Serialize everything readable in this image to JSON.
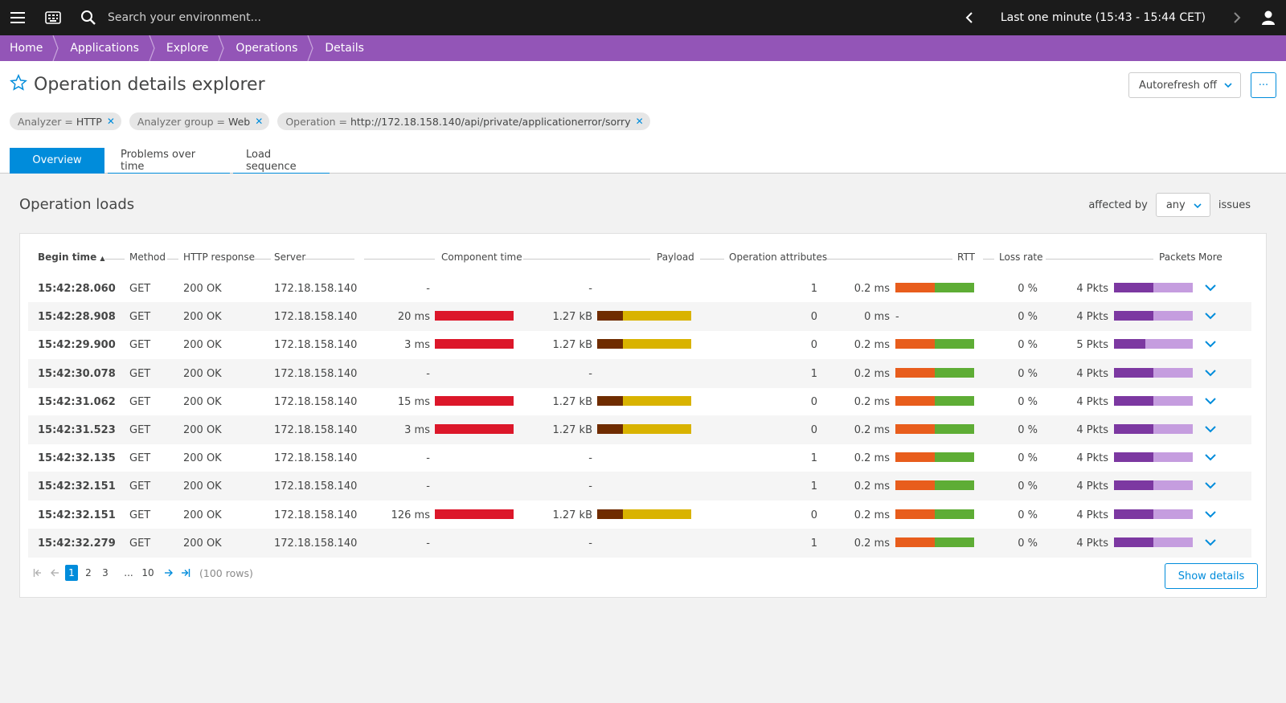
{
  "topbar": {
    "search_placeholder": "Search your environment...",
    "timeframe": "Last one minute (15:43 - 15:44 CET)"
  },
  "breadcrumb": [
    "Home",
    "Applications",
    "Explore",
    "Operations",
    "Details"
  ],
  "page": {
    "title": "Operation details explorer",
    "autorefresh": "Autorefresh off",
    "more": "···"
  },
  "filters": [
    {
      "key": "Analyzer",
      "op": " = ",
      "value": "HTTP"
    },
    {
      "key": "Analyzer group",
      "op": " = ",
      "value": "Web"
    },
    {
      "key": "Operation",
      "op": " = ",
      "value": "http://172.18.158.140/api/private/applicationerror/sorry"
    }
  ],
  "tabs": [
    "Overview",
    "Problems over time",
    "Load sequence"
  ],
  "section": {
    "title": "Operation loads",
    "affected_by": "affected by",
    "select_value": "any",
    "issues": "issues"
  },
  "table": {
    "columns": {
      "begin_time": "Begin time",
      "method": "Method",
      "http_response": "HTTP response",
      "server": "Server",
      "component_time": "Component time",
      "payload": "Payload",
      "operation_attributes": "Operation attributes",
      "rtt": "RTT",
      "loss_rate": "Loss rate",
      "packets": "Packets",
      "more": "More"
    },
    "rows": [
      {
        "time": "15:42:28.060",
        "method": "GET",
        "http": "200 OK",
        "server": "172.18.158.140",
        "comp": "-",
        "comp_bar": 0,
        "payload": "-",
        "payload_bar": 0,
        "attrs": "1",
        "rtt": "0.2 ms",
        "rtt_bar": 1,
        "loss": "0 %",
        "packets": "4 Pkts",
        "pkts_split": 0.5
      },
      {
        "time": "15:42:28.908",
        "method": "GET",
        "http": "200 OK",
        "server": "172.18.158.140",
        "comp": "20 ms",
        "comp_bar": 1,
        "payload": "1.27 kB",
        "payload_bar": 1,
        "attrs": "0",
        "rtt": "0 ms",
        "rtt_bar": 0,
        "loss": "0 %",
        "packets": "4 Pkts",
        "pkts_split": 0.5
      },
      {
        "time": "15:42:29.900",
        "method": "GET",
        "http": "200 OK",
        "server": "172.18.158.140",
        "comp": "3 ms",
        "comp_bar": 1,
        "payload": "1.27 kB",
        "payload_bar": 1,
        "attrs": "0",
        "rtt": "0.2 ms",
        "rtt_bar": 1,
        "loss": "0 %",
        "packets": "5 Pkts",
        "pkts_split": 0.4
      },
      {
        "time": "15:42:30.078",
        "method": "GET",
        "http": "200 OK",
        "server": "172.18.158.140",
        "comp": "-",
        "comp_bar": 0,
        "payload": "-",
        "payload_bar": 0,
        "attrs": "1",
        "rtt": "0.2 ms",
        "rtt_bar": 1,
        "loss": "0 %",
        "packets": "4 Pkts",
        "pkts_split": 0.5
      },
      {
        "time": "15:42:31.062",
        "method": "GET",
        "http": "200 OK",
        "server": "172.18.158.140",
        "comp": "15 ms",
        "comp_bar": 1,
        "payload": "1.27 kB",
        "payload_bar": 1,
        "attrs": "0",
        "rtt": "0.2 ms",
        "rtt_bar": 1,
        "loss": "0 %",
        "packets": "4 Pkts",
        "pkts_split": 0.5
      },
      {
        "time": "15:42:31.523",
        "method": "GET",
        "http": "200 OK",
        "server": "172.18.158.140",
        "comp": "3 ms",
        "comp_bar": 1,
        "payload": "1.27 kB",
        "payload_bar": 1,
        "attrs": "0",
        "rtt": "0.2 ms",
        "rtt_bar": 1,
        "loss": "0 %",
        "packets": "4 Pkts",
        "pkts_split": 0.5
      },
      {
        "time": "15:42:32.135",
        "method": "GET",
        "http": "200 OK",
        "server": "172.18.158.140",
        "comp": "-",
        "comp_bar": 0,
        "payload": "-",
        "payload_bar": 0,
        "attrs": "1",
        "rtt": "0.2 ms",
        "rtt_bar": 1,
        "loss": "0 %",
        "packets": "4 Pkts",
        "pkts_split": 0.5
      },
      {
        "time": "15:42:32.151",
        "method": "GET",
        "http": "200 OK",
        "server": "172.18.158.140",
        "comp": "-",
        "comp_bar": 0,
        "payload": "-",
        "payload_bar": 0,
        "attrs": "1",
        "rtt": "0.2 ms",
        "rtt_bar": 1,
        "loss": "0 %",
        "packets": "4 Pkts",
        "pkts_split": 0.5
      },
      {
        "time": "15:42:32.151",
        "method": "GET",
        "http": "200 OK",
        "server": "172.18.158.140",
        "comp": "126 ms",
        "comp_bar": 1,
        "payload": "1.27 kB",
        "payload_bar": 1,
        "attrs": "0",
        "rtt": "0.2 ms",
        "rtt_bar": 1,
        "loss": "0 %",
        "packets": "4 Pkts",
        "pkts_split": 0.5
      },
      {
        "time": "15:42:32.279",
        "method": "GET",
        "http": "200 OK",
        "server": "172.18.158.140",
        "comp": "-",
        "comp_bar": 0,
        "payload": "-",
        "payload_bar": 0,
        "attrs": "1",
        "rtt": "0.2 ms",
        "rtt_bar": 1,
        "loss": "0 %",
        "packets": "4 Pkts",
        "pkts_split": 0.5
      }
    ]
  },
  "pager": {
    "pages": [
      "1",
      "2",
      "3",
      "...",
      "10"
    ],
    "rows_count": "(100 rows)"
  },
  "show_details": "Show details",
  "colors": {
    "accent": "#008cdb",
    "breadcrumb": "#9355b7",
    "component": "#dc172a",
    "payload_dark": "#6f2c00",
    "payload_light": "#d9b300",
    "rtt_orange": "#e85d1c",
    "rtt_green": "#5ead35",
    "pkts_dark": "#7c38a1",
    "pkts_light": "#c59ddf"
  }
}
